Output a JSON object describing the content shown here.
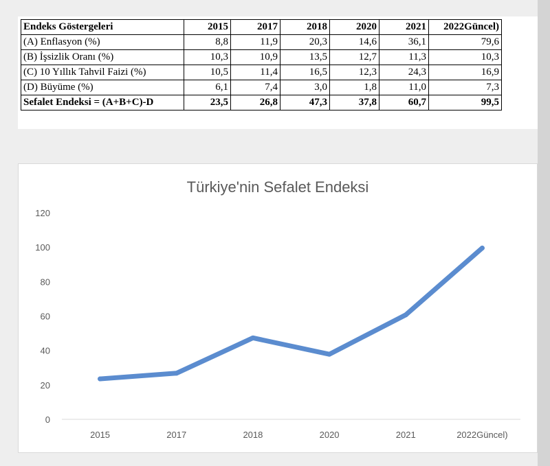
{
  "table": {
    "headers": [
      "Endeks Göstergeleri",
      "2015",
      "2017",
      "2018",
      "2020",
      "2021",
      "2022Güncel)"
    ],
    "rows": [
      [
        "(A) Enflasyon (%)",
        "8,8",
        "11,9",
        "20,3",
        "14,6",
        "36,1",
        "79,6"
      ],
      [
        "(B) İşsizlik Oranı (%)",
        "10,3",
        "10,9",
        "13,5",
        "12,7",
        "11,3",
        "10,3"
      ],
      [
        "(C) 10 Yıllık Tahvil Faizi (%)",
        "10,5",
        "11,4",
        "16,5",
        "12,3",
        "24,3",
        "16,9"
      ],
      [
        "(D) Büyüme (%)",
        "6,1",
        "7,4",
        "3,0",
        "1,8",
        "11,0",
        "7,3"
      ],
      [
        "Sefalet Endeksi = (A+B+C)-D",
        "23,5",
        "26,8",
        "47,3",
        "37,8",
        "60,7",
        "99,5"
      ]
    ]
  },
  "chart_data": {
    "type": "line",
    "title": "Türkiye'nin Sefalet Endeksi",
    "xlabel": "",
    "ylabel": "",
    "categories": [
      "2015",
      "2017",
      "2018",
      "2020",
      "2021",
      "2022Güncel)"
    ],
    "series": [
      {
        "values": [
          23.5,
          26.8,
          47.3,
          37.8,
          60.7,
          99.5
        ]
      }
    ],
    "ylim": [
      0,
      120
    ],
    "yticks": [
      "0",
      "20",
      "40",
      "60",
      "80",
      "100",
      "120"
    ],
    "grid": false,
    "legend": "none",
    "line_color": "#5b8ccf"
  }
}
